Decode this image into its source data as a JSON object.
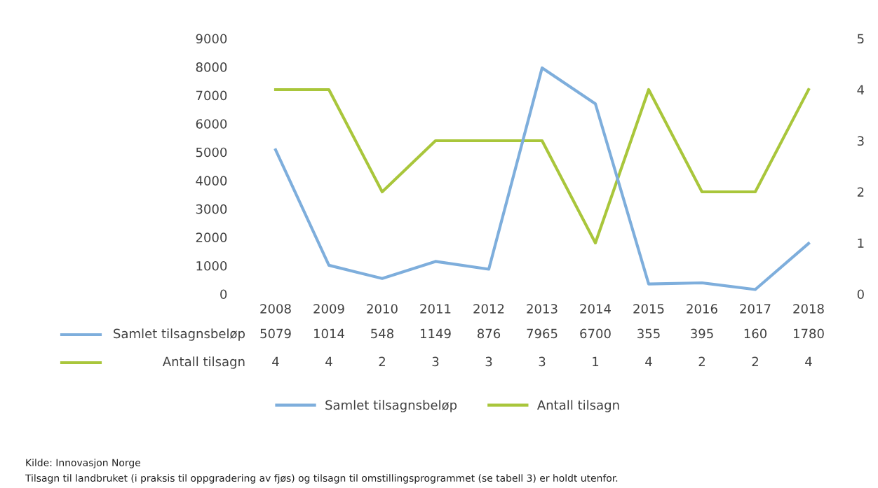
{
  "chart_data": {
    "type": "line",
    "categories": [
      "2008",
      "2009",
      "2010",
      "2011",
      "2012",
      "2013",
      "2014",
      "2015",
      "2016",
      "2017",
      "2018"
    ],
    "series": [
      {
        "name": "Samlet tilsagnsbeløp",
        "color": "#7eaedc",
        "values": [
          5079,
          1014,
          548,
          1149,
          876,
          7965,
          6700,
          355,
          395,
          160,
          1780
        ]
      },
      {
        "name": "Antall tilsagn",
        "color": "#a9c63b",
        "axis": "y2",
        "values": [
          4,
          4,
          2,
          3,
          3,
          3,
          1,
          4,
          2,
          2,
          4
        ]
      }
    ],
    "ylim": [
      0,
      9000
    ],
    "yticks": [
      0,
      1000,
      2000,
      3000,
      4000,
      5000,
      6000,
      7000,
      8000,
      9000
    ],
    "y2lim": [
      0,
      5
    ],
    "y2ticks": [
      0,
      1,
      2,
      3,
      4,
      5
    ],
    "data_labels": true,
    "legend": "bottom",
    "annotations": [
      "Kilde: Innovasjon Norge",
      "Tilsagn til landbruket (i praksis til oppgradering av fjøs) og tilsagn til omstillingsprogrammet (se tabell 3) er holdt utenfor."
    ]
  }
}
